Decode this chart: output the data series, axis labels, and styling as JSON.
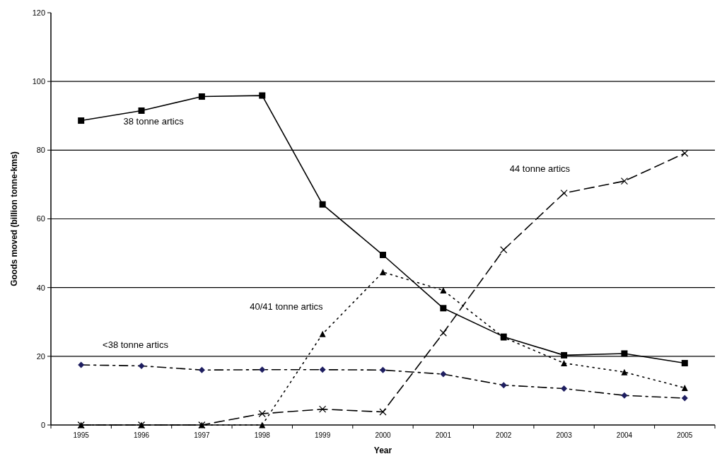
{
  "chart_data": {
    "type": "line",
    "xlabel": "Year",
    "ylabel": "Goods moved (billion tonne-kms)",
    "categories": [
      "1995",
      "1996",
      "1997",
      "1998",
      "1999",
      "2000",
      "2001",
      "2002",
      "2003",
      "2004",
      "2005"
    ],
    "series": [
      {
        "name": "38 tonne artics",
        "color": "#000000",
        "marker": "square",
        "line_style": "solid",
        "values": [
          88.6,
          91.5,
          95.6,
          95.9,
          64.2,
          49.5,
          34.0,
          25.7,
          20.3,
          20.8,
          18.0
        ]
      },
      {
        "name": "40/41 tonne artics",
        "color": "#000000",
        "marker": "triangle",
        "line_style": "dotted",
        "values": [
          0,
          0,
          0,
          0,
          26.5,
          44.5,
          39.2,
          25.5,
          18.0,
          15.4,
          10.8
        ]
      },
      {
        "name": "44 tonne artics",
        "color": "#000000",
        "marker": "cross",
        "line_style": "dashed",
        "values": [
          0,
          0,
          0,
          3.3,
          4.6,
          3.8,
          26.8,
          51,
          67.5,
          71,
          79.1
        ]
      },
      {
        "name": "<38 tonne artics",
        "color": "#000000",
        "marker": "diamond",
        "line_style": "dashdot",
        "values": [
          17.5,
          17.2,
          16.0,
          16.1,
          16.1,
          16.0,
          14.8,
          11.6,
          10.6,
          8.6,
          7.8
        ]
      }
    ],
    "ylim": [
      0,
      120
    ],
    "yticks": [
      0,
      20,
      40,
      60,
      80,
      100,
      120
    ],
    "grid": "y"
  }
}
